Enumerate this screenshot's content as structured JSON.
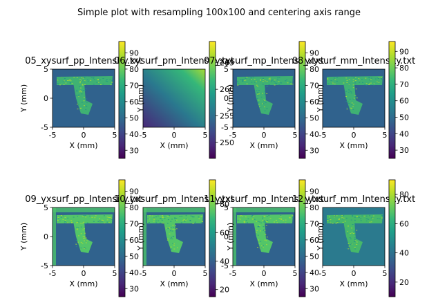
{
  "figure": {
    "suptitle": "Simple plot with resampling 100x100 and centering axis range"
  },
  "chart_data": [
    {
      "type": "heatmap",
      "title": "05_xysurf_pp_Intensity.txt",
      "xlabel": "X (mm)",
      "ylabel": "Y (mm)",
      "xlim": [
        -5,
        5
      ],
      "ylim": [
        -5,
        5
      ],
      "xticks": [
        -5,
        0,
        5
      ],
      "yticks": [
        -5,
        0,
        5
      ],
      "colorbar": {
        "range": [
          25,
          97
        ],
        "ticks": [
          30,
          40,
          50,
          60,
          70,
          80,
          90
        ]
      },
      "pattern": "t-shape"
    },
    {
      "type": "heatmap",
      "title": "06_xysurf_pm_Intensity.txt",
      "xlabel": "X (mm)",
      "ylabel": "Y (mm)",
      "xlim": [
        -5,
        5
      ],
      "ylim": [
        -5,
        5
      ],
      "xticks": [
        -5,
        0,
        5
      ],
      "yticks": [],
      "colorbar": {
        "range": [
          247,
          269
        ],
        "ticks": [
          250,
          255,
          260,
          265
        ]
      },
      "pattern": "gradient"
    },
    {
      "type": "heatmap",
      "title": "07_xysurf_mp_Intensity.txt",
      "xlabel": "X (mm)",
      "ylabel": "Y (mm)",
      "xlim": [
        -5,
        5
      ],
      "ylim": [
        -5,
        5
      ],
      "xticks": [
        -5,
        0,
        5
      ],
      "yticks": [
        -5,
        0,
        5
      ],
      "colorbar": {
        "range": [
          25,
          97
        ],
        "ticks": [
          30,
          40,
          50,
          60,
          70,
          80,
          90
        ]
      },
      "pattern": "t-shape"
    },
    {
      "type": "heatmap",
      "title": "08_xysurf_mm_Intensity.txt",
      "xlabel": "X (mm)",
      "ylabel": "Y (mm)",
      "xlim": [
        -5,
        5
      ],
      "ylim": [
        -5,
        5
      ],
      "xticks": [
        -5,
        0,
        5
      ],
      "yticks": [],
      "colorbar": {
        "range": [
          25,
          96
        ],
        "ticks": [
          30,
          40,
          50,
          60,
          70,
          80,
          90
        ]
      },
      "pattern": "t-shape"
    },
    {
      "type": "heatmap",
      "title": "09_yxsurf_pp_Intensity.txt",
      "xlabel": "X (mm)",
      "ylabel": "Y (mm)",
      "xlim": [
        -5,
        5
      ],
      "ylim": [
        -5,
        5
      ],
      "xticks": [
        -5,
        0,
        5
      ],
      "yticks": [
        -5,
        0,
        5
      ],
      "colorbar": {
        "range": [
          25,
          97
        ],
        "ticks": [
          30,
          40,
          50,
          60,
          70,
          80,
          90
        ]
      },
      "pattern": "t-shape-bright"
    },
    {
      "type": "heatmap",
      "title": "10_yxsurf_pm_Intensity.txt",
      "xlabel": "X (mm)",
      "ylabel": "Y (mm)",
      "xlim": [
        -5,
        5
      ],
      "ylim": [
        -5,
        5
      ],
      "xticks": [
        -5,
        0,
        5
      ],
      "yticks": [],
      "colorbar": {
        "range": [
          15,
          97
        ],
        "ticks": [
          20,
          40,
          60,
          80
        ]
      },
      "pattern": "t-shape-bright"
    },
    {
      "type": "heatmap",
      "title": "11_yxsurf_mp_Intensity.txt",
      "xlabel": "X (mm)",
      "ylabel": "Y (mm)",
      "xlim": [
        -5,
        5
      ],
      "ylim": [
        -5,
        5
      ],
      "xticks": [
        -5,
        0,
        5
      ],
      "yticks": [
        -5,
        0,
        5
      ],
      "colorbar": {
        "range": [
          25,
          97
        ],
        "ticks": [
          30,
          40,
          50,
          60,
          70,
          80,
          90
        ]
      },
      "pattern": "t-shape-bright"
    },
    {
      "type": "heatmap",
      "title": "12_yxsurf_mm_Intensity.txt",
      "xlabel": "X (mm)",
      "ylabel": "Y (mm)",
      "xlim": [
        -5,
        5
      ],
      "ylim": [
        -5,
        5
      ],
      "xticks": [
        -5,
        0,
        5
      ],
      "yticks": [],
      "colorbar": {
        "range": [
          10,
          90
        ],
        "ticks": [
          20,
          40,
          60,
          80
        ]
      },
      "pattern": "t-shape-dark"
    }
  ]
}
